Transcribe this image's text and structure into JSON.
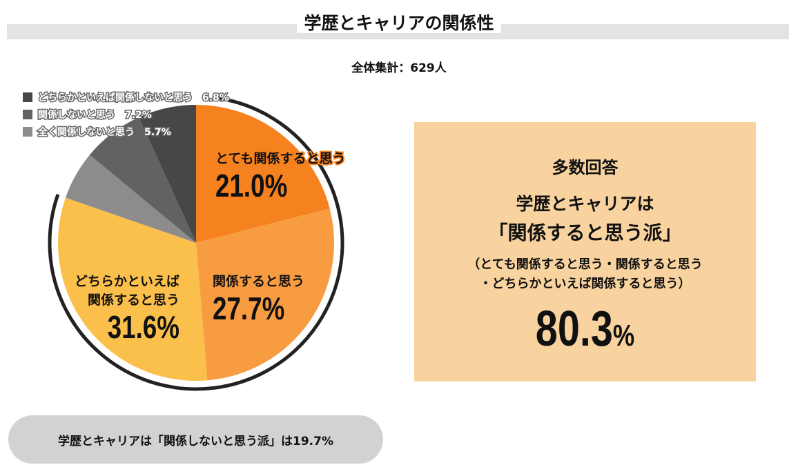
{
  "title": "学歴とキャリアの関係性",
  "total": "全体集計：629人",
  "chart_data": {
    "type": "pie",
    "title": "学歴とキャリアの関係性",
    "slices": [
      {
        "label": "とても関係すると思う",
        "value": 21.0,
        "pct": "21.0%",
        "color": "#f5821f"
      },
      {
        "label": "関係すると思う",
        "value": 27.7,
        "pct": "27.7%",
        "color": "#f89c42"
      },
      {
        "label": "どちらかといえば関係すると思う",
        "value": 31.6,
        "pct": "31.6%",
        "color": "#fbbf4b"
      },
      {
        "label": "全く関係しないと思う",
        "value": 5.7,
        "pct": "5.7%",
        "color": "#8c8c8c"
      },
      {
        "label": "関係しないと思う",
        "value": 7.2,
        "pct": "7.2%",
        "color": "#626262"
      },
      {
        "label": "どちらかといえば関係しないと思う",
        "value": 6.8,
        "pct": "6.8%",
        "color": "#474747"
      }
    ],
    "slice_labels": {
      "s0": "とても関係すると思う",
      "s1": "関係すると思う",
      "s2a": "どちらかといえば",
      "s2b": "関係すると思う"
    }
  },
  "legend": [
    {
      "text": "どちらかといえば関係しないと思う　6.8%",
      "color": "#474747"
    },
    {
      "text": "関係しないと思う　7.2%",
      "color": "#626262"
    },
    {
      "text": "全く関係しないと思う　5.7%",
      "color": "#8c8c8c"
    }
  ],
  "summary": {
    "heading": "多数回答",
    "line1": "学歴とキャリアは",
    "line2": "「関係すると思う派」",
    "note1": "（とても関係すると思う・関係すると思う",
    "note2": "・どちらかといえば関係すると思う）",
    "value": "80.3",
    "unit": "%"
  },
  "footer": "学歴とキャリアは「関係しないと思う派」は19.7%"
}
